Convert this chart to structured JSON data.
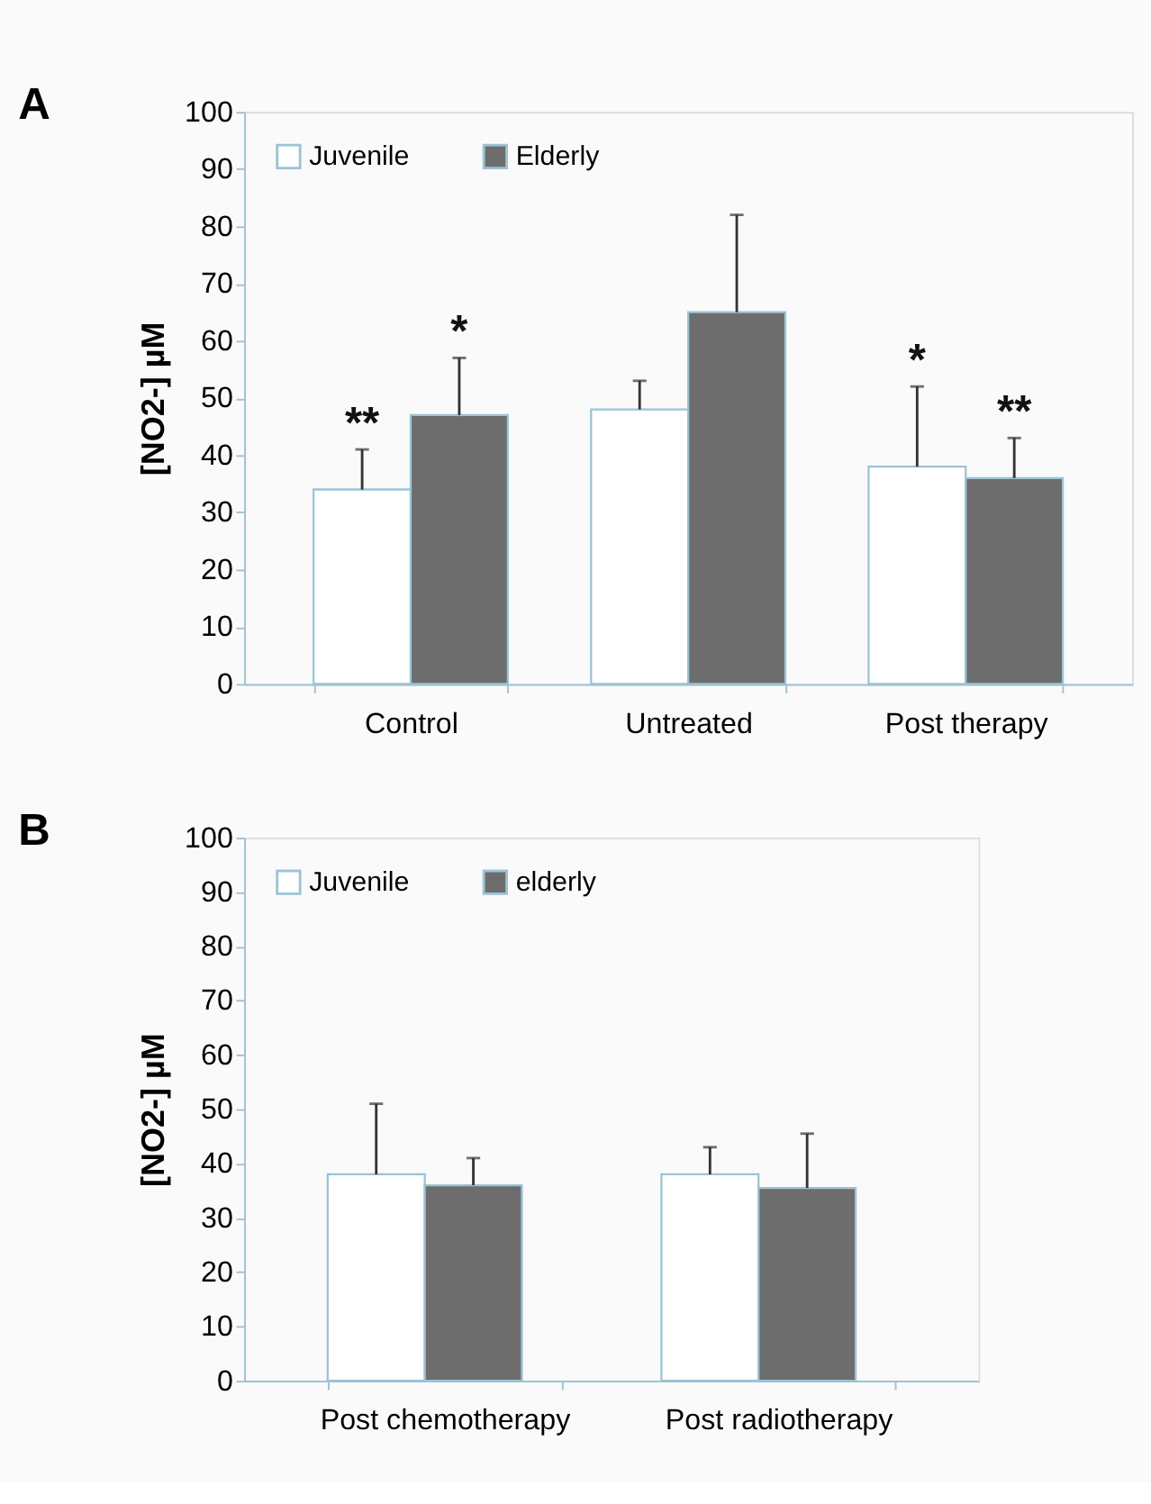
{
  "chart_data": [
    {
      "type": "bar",
      "title": "A",
      "ylabel": "[NO2-] µM",
      "categories": [
        "Control",
        "Untreated",
        "Post therapy"
      ],
      "series": [
        {
          "name": "Juvenile",
          "color": "#ffffff",
          "values": [
            34,
            48,
            38
          ],
          "errors": [
            [
              34,
              41
            ],
            [
              48,
              53
            ],
            [
              38,
              52
            ]
          ],
          "value_labels": [
            "**",
            null,
            "*"
          ]
        },
        {
          "name": "Elderly",
          "color": "#6d6d6d",
          "values": [
            47,
            65,
            36
          ],
          "errors": [
            [
              47,
              57
            ],
            [
              65,
              82
            ],
            [
              36,
              43
            ]
          ],
          "value_labels": [
            "*",
            null,
            "**"
          ]
        }
      ],
      "ylim": [
        0,
        100
      ],
      "yticks": [
        0,
        10,
        20,
        30,
        40,
        50,
        60,
        70,
        80,
        90,
        100
      ],
      "grid": false,
      "legend": "top left"
    },
    {
      "type": "bar",
      "title": "B",
      "ylabel": "[NO2-]  µM",
      "categories": [
        "Post chemotherapy",
        "Post radiotherapy"
      ],
      "series": [
        {
          "name": "Juvenile",
          "color": "#ffffff",
          "values": [
            38,
            38
          ],
          "errors": [
            [
              38,
              51
            ],
            [
              38,
              43
            ]
          ]
        },
        {
          "name": "elderly",
          "color": "#6d6d6d",
          "values": [
            36,
            35.5
          ],
          "errors": [
            [
              36,
              41
            ],
            [
              35.5,
              45.5
            ]
          ]
        }
      ],
      "ylim": [
        0,
        100
      ],
      "yticks": [
        0,
        10,
        20,
        30,
        40,
        50,
        60,
        70,
        80,
        90,
        100
      ],
      "grid": false,
      "legend": "top left"
    }
  ]
}
